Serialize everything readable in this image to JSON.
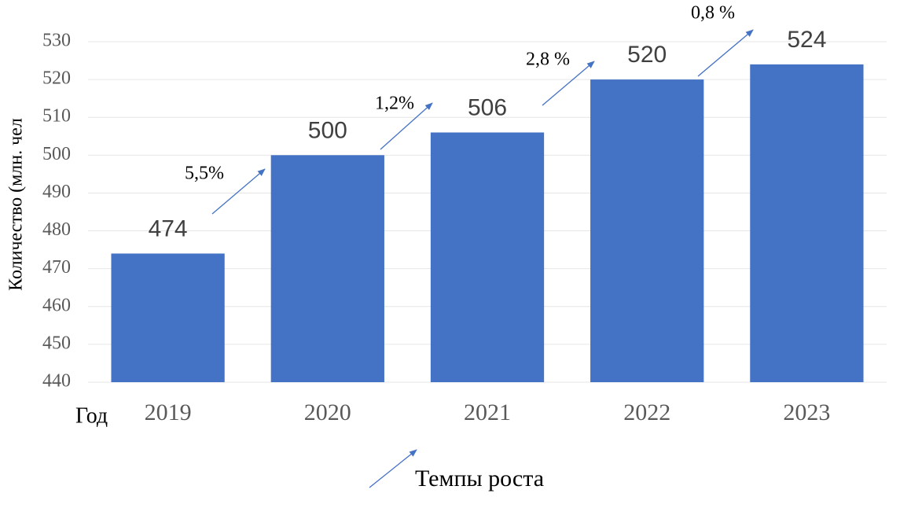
{
  "chart_data": {
    "type": "bar",
    "categories": [
      "2019",
      "2020",
      "2021",
      "2022",
      "2023"
    ],
    "values": [
      474,
      500,
      506,
      520,
      524
    ],
    "color": "#4472c4",
    "ylim": [
      440,
      530
    ],
    "yticks": [
      440,
      450,
      460,
      470,
      480,
      490,
      500,
      510,
      520,
      530
    ],
    "grid": true,
    "y_label": "Количество (млн. чел",
    "x_label": "Год",
    "annotations": [
      "5,5%",
      "1,2%",
      "2,8 %",
      "0,8 %"
    ],
    "legend": "Темпы роста"
  }
}
